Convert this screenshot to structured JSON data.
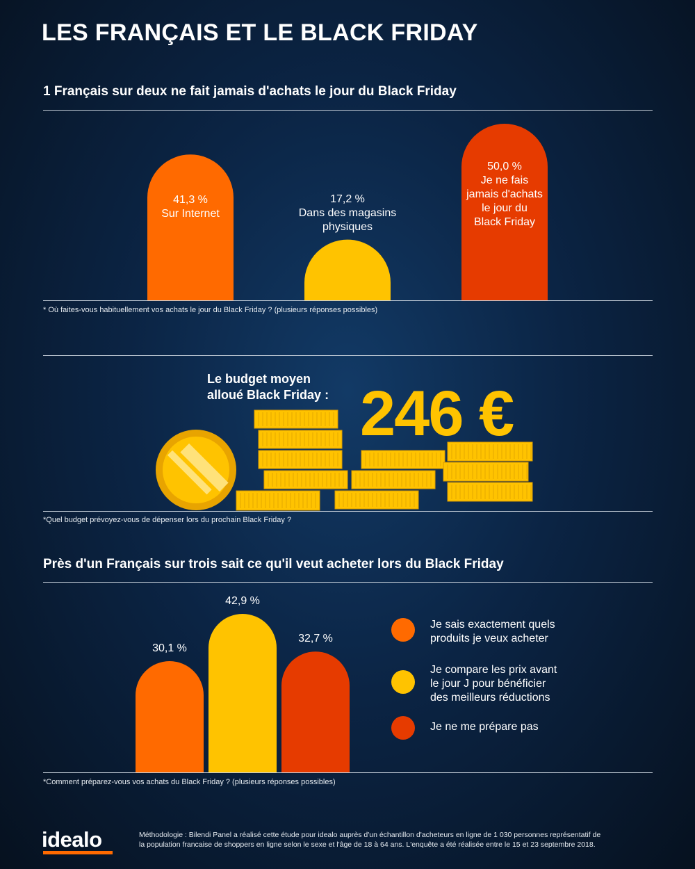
{
  "title": "LES FRANÇAIS ET LE BLACK FRIDAY",
  "colors": {
    "orange": "#ff6a00",
    "yellow": "#ffc300",
    "red": "#e63b00"
  },
  "chart_data": [
    {
      "type": "bar",
      "title": "1 Français sur deux ne fait jamais d'achats le jour du Black Friday",
      "note": "* Où faites-vous habituellement vos achats le jour du Black Friday ? (plusieurs réponses possibles)",
      "categories": [
        "Sur Internet",
        "Dans des magasins physiques",
        "Je ne fais jamais d'achats le jour du Black Friday"
      ],
      "values": [
        41.3,
        17.2,
        50.0
      ],
      "value_labels": [
        "41,3 %",
        "17,2 %",
        "50,0 %"
      ],
      "label_lines": [
        [
          "Sur Internet"
        ],
        [
          "Dans des magasins",
          "physiques"
        ],
        [
          "Je ne fais",
          "jamais d'achats",
          "le jour du",
          "Black Friday"
        ]
      ],
      "colors": [
        "#ff6a00",
        "#ffc300",
        "#e63b00"
      ]
    },
    {
      "type": "bar",
      "title": "Près d'un Français sur trois sait ce qu'il veut acheter lors du Black Friday",
      "note": "*Comment préparez-vous vos achats du Black Friday ?  (plusieurs réponses possibles)",
      "categories": [
        "Je sais exactement quels produits je veux acheter",
        "Je compare les prix avant le jour J pour bénéficier des meilleurs réductions",
        "Je ne me prépare pas"
      ],
      "values": [
        30.1,
        42.9,
        32.7
      ],
      "value_labels": [
        "30,1 %",
        "42,9 %",
        "32,7 %"
      ],
      "colors": [
        "#ff6a00",
        "#ffc300",
        "#e63b00"
      ],
      "legend_position": "right"
    }
  ],
  "legend": [
    {
      "lines": [
        "Je sais exactement quels",
        "produits je veux acheter"
      ]
    },
    {
      "lines": [
        "Je compare les prix avant",
        "le jour J pour bénéficier",
        "des meilleurs réductions"
      ]
    },
    {
      "lines": [
        "Je ne me prépare pas"
      ]
    }
  ],
  "budget": {
    "label_line1": "Le budget moyen",
    "label_line2": "alloué Black Friday :",
    "amount": "246 €",
    "note": "*Quel budget prévoyez-vous de dépenser lors du prochain Black Friday ?"
  },
  "footer": {
    "logo": "idealo",
    "methodology_line1": "Méthodologie : Bilendi Panel a réalisé cette étude pour idealo auprès d'un échantillon d'acheteurs en ligne de 1 030 personnes représentatif de",
    "methodology_line2": "la population francaise de shoppers en ligne selon le sexe et l'âge de 18 à 64 ans. L'enquête a été réalisée entre le 15 et 23 septembre 2018."
  }
}
